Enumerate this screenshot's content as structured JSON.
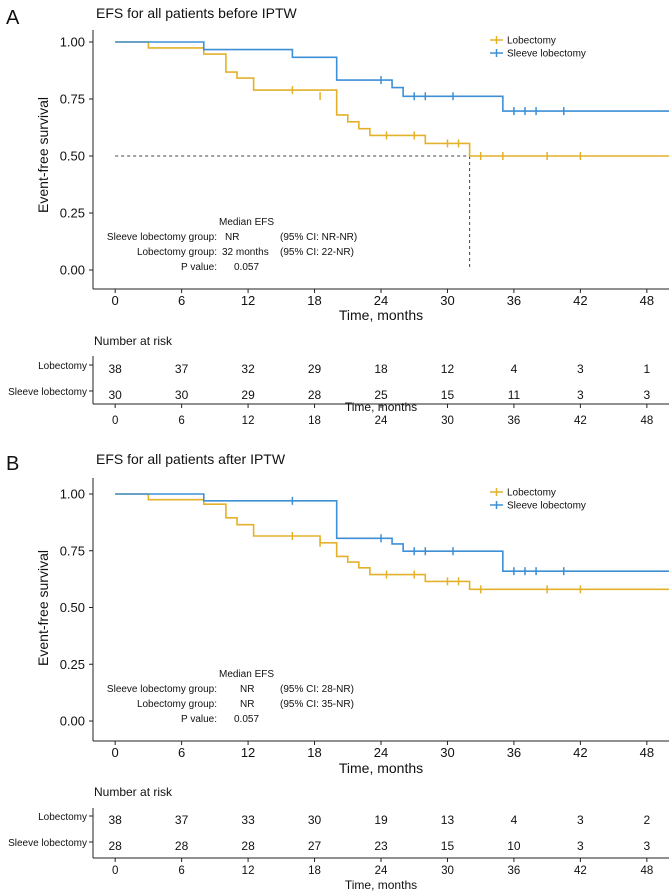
{
  "colors": {
    "lobectomy": "#e3b12a",
    "sleeve": "#3d8fd6",
    "axis": "#222222",
    "grid": "#444444"
  },
  "panels": [
    {
      "letter": "A",
      "title": "EFS for all patients before IPTW",
      "ylabel": "Event-free survival",
      "xlabel": "Time, months",
      "legend": [
        "Lobectomy",
        "Sleeve lobectomy"
      ],
      "stats": {
        "header": "Median EFS",
        "rows": [
          {
            "label": "Sleeve lobectomy group:",
            "value": "NR",
            "ci": "(95% CI: NR-NR)"
          },
          {
            "label": "Lobectomy group:",
            "value": "32 months",
            "ci": "(95% CI: 22-NR)"
          },
          {
            "label": "P value:",
            "value": "0.057",
            "ci": ""
          }
        ]
      },
      "risk": {
        "title": "Number at risk",
        "xlabel": "Time, months",
        "rows": [
          {
            "label": "Lobectomy",
            "values": [
              38,
              37,
              32,
              29,
              18,
              12,
              4,
              3,
              1
            ]
          },
          {
            "label": "Sleeve lobectomy",
            "values": [
              30,
              30,
              29,
              28,
              25,
              15,
              11,
              3,
              3
            ]
          }
        ]
      }
    },
    {
      "letter": "B",
      "title": "EFS for all patients after IPTW",
      "ylabel": "Event-free survival",
      "xlabel": "Time, months",
      "legend": [
        "Lobectomy",
        "Sleeve lobectomy"
      ],
      "stats": {
        "header": "Median EFS",
        "rows": [
          {
            "label": "Sleeve lobectomy group:",
            "value": "NR",
            "ci": "(95% CI: 28-NR)"
          },
          {
            "label": "Lobectomy group:",
            "value": "NR",
            "ci": "(95% CI: 35-NR)"
          },
          {
            "label": "P value:",
            "value": "0.057",
            "ci": ""
          }
        ]
      },
      "risk": {
        "title": "Number at risk",
        "xlabel": "Time, months",
        "rows": [
          {
            "label": "Lobectomy",
            "values": [
              38,
              37,
              33,
              30,
              19,
              13,
              4,
              3,
              2
            ]
          },
          {
            "label": "Sleeve lobectomy",
            "values": [
              28,
              28,
              28,
              27,
              23,
              15,
              10,
              3,
              3
            ]
          }
        ]
      }
    }
  ],
  "chart_data": [
    {
      "type": "line",
      "title": "EFS for all patients before IPTW",
      "xlabel": "Time, months",
      "ylabel": "Event-free survival",
      "xlim": [
        -2,
        50
      ],
      "ylim": [
        0,
        1
      ],
      "xticks": [
        0,
        6,
        12,
        18,
        24,
        30,
        36,
        42,
        48
      ],
      "yticks": [
        "0.00",
        "0.25",
        "0.50",
        "0.75",
        "1.00"
      ],
      "median_reference": {
        "y": 0.5,
        "x": 32
      },
      "series": [
        {
          "name": "Lobectomy",
          "end": 50,
          "steps": [
            [
              0,
              1.0
            ],
            [
              3,
              0.974
            ],
            [
              8,
              0.947
            ],
            [
              10,
              0.868
            ],
            [
              11,
              0.842
            ],
            [
              12.5,
              0.789
            ],
            [
              20,
              0.737
            ],
            [
              20,
              0.68
            ],
            [
              21,
              0.65
            ],
            [
              22,
              0.62
            ],
            [
              23,
              0.59
            ],
            [
              28,
              0.555
            ],
            [
              32,
              0.5
            ],
            [
              50,
              0.5
            ]
          ],
          "censors": [
            [
              16,
              0.789
            ],
            [
              18.5,
              0.763
            ],
            [
              24.5,
              0.59
            ],
            [
              27,
              0.59
            ],
            [
              30,
              0.555
            ],
            [
              31,
              0.555
            ],
            [
              33,
              0.5
            ],
            [
              35,
              0.5
            ],
            [
              39,
              0.5
            ],
            [
              42,
              0.5
            ]
          ]
        },
        {
          "name": "Sleeve lobectomy",
          "end": 50,
          "steps": [
            [
              0,
              1.0
            ],
            [
              8,
              0.967
            ],
            [
              16,
              0.933
            ],
            [
              20,
              0.833
            ],
            [
              25,
              0.8
            ],
            [
              26,
              0.762
            ],
            [
              35,
              0.697
            ],
            [
              50,
              0.697
            ]
          ],
          "censors": [
            [
              24,
              0.833
            ],
            [
              27,
              0.762
            ],
            [
              28,
              0.762
            ],
            [
              30.5,
              0.762
            ],
            [
              36,
              0.697
            ],
            [
              37,
              0.697
            ],
            [
              38,
              0.697
            ],
            [
              40.5,
              0.697
            ]
          ]
        }
      ]
    },
    {
      "type": "line",
      "title": "EFS for all patients after IPTW",
      "xlabel": "Time, months",
      "ylabel": "Event-free survival",
      "xlim": [
        -2,
        50
      ],
      "ylim": [
        0,
        1
      ],
      "xticks": [
        0,
        6,
        12,
        18,
        24,
        30,
        36,
        42,
        48
      ],
      "yticks": [
        "0.00",
        "0.25",
        "0.50",
        "0.75",
        "1.00"
      ],
      "series": [
        {
          "name": "Lobectomy",
          "end": 50,
          "steps": [
            [
              0,
              1.0
            ],
            [
              3,
              0.975
            ],
            [
              8,
              0.955
            ],
            [
              10,
              0.895
            ],
            [
              11,
              0.865
            ],
            [
              12.5,
              0.815
            ],
            [
              18.5,
              0.785
            ],
            [
              20,
              0.725
            ],
            [
              21,
              0.7
            ],
            [
              22,
              0.675
            ],
            [
              23,
              0.645
            ],
            [
              28,
              0.615
            ],
            [
              32,
              0.58
            ],
            [
              50,
              0.58
            ]
          ],
          "censors": [
            [
              16,
              0.815
            ],
            [
              18.5,
              0.785
            ],
            [
              24.5,
              0.645
            ],
            [
              27,
              0.645
            ],
            [
              30,
              0.615
            ],
            [
              31,
              0.615
            ],
            [
              33,
              0.58
            ],
            [
              39,
              0.58
            ],
            [
              42,
              0.58
            ]
          ]
        },
        {
          "name": "Sleeve lobectomy",
          "end": 50,
          "steps": [
            [
              0,
              1.0
            ],
            [
              8,
              0.97
            ],
            [
              20,
              0.805
            ],
            [
              25,
              0.78
            ],
            [
              26,
              0.748
            ],
            [
              35,
              0.66
            ],
            [
              50,
              0.66
            ]
          ],
          "censors": [
            [
              16,
              0.97
            ],
            [
              24,
              0.805
            ],
            [
              27,
              0.748
            ],
            [
              28,
              0.748
            ],
            [
              30.5,
              0.748
            ],
            [
              36,
              0.66
            ],
            [
              37,
              0.66
            ],
            [
              38,
              0.66
            ],
            [
              40.5,
              0.66
            ]
          ]
        }
      ]
    }
  ]
}
